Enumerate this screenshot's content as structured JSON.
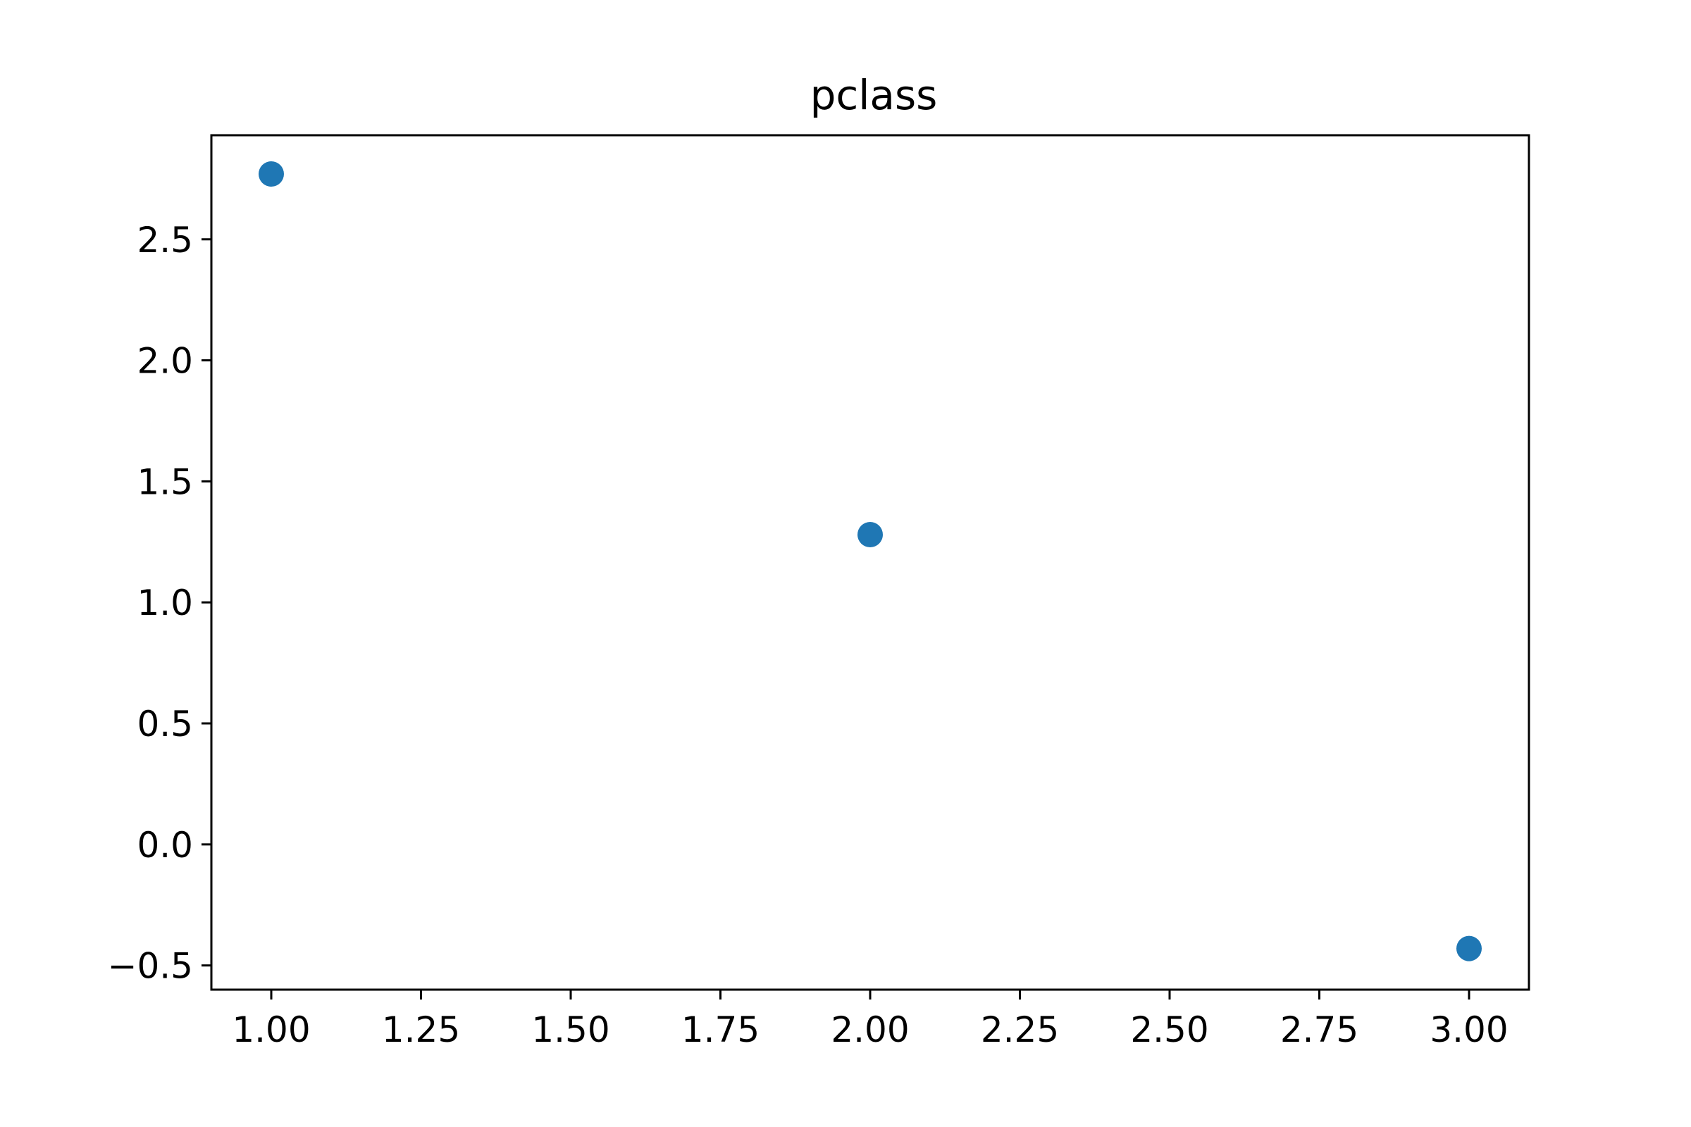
{
  "chart_data": {
    "type": "scatter",
    "title": "pclass",
    "xlabel": "",
    "ylabel": "",
    "xlim": [
      0.9,
      3.1
    ],
    "ylim": [
      -0.6,
      2.93
    ],
    "xticks": [
      1.0,
      1.25,
      1.5,
      1.75,
      2.0,
      2.25,
      2.5,
      2.75,
      3.0
    ],
    "xtick_labels": [
      "1.00",
      "1.25",
      "1.50",
      "1.75",
      "2.00",
      "2.25",
      "2.50",
      "2.75",
      "3.00"
    ],
    "yticks": [
      -0.5,
      0.0,
      0.5,
      1.0,
      1.5,
      2.0,
      2.5
    ],
    "ytick_labels": [
      "−0.5",
      "0.0",
      "0.5",
      "1.0",
      "1.5",
      "2.0",
      "2.5"
    ],
    "grid": false,
    "series": [
      {
        "color": "#1f77b4",
        "points": [
          {
            "x": 1.0,
            "y": 2.77
          },
          {
            "x": 2.0,
            "y": 1.28
          },
          {
            "x": 3.0,
            "y": -0.43
          }
        ]
      }
    ]
  }
}
